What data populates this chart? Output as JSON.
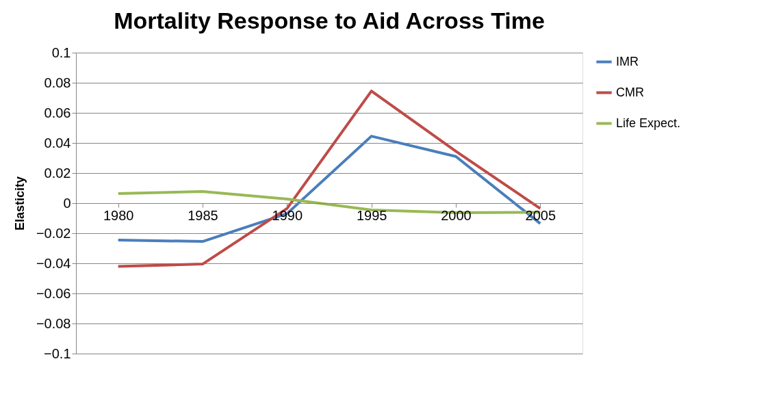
{
  "chart_data": {
    "type": "line",
    "title": "Mortality Response to Aid Across Time",
    "ylabel": "Elasticity",
    "categories": [
      "1980",
      "1985",
      "1990",
      "1995",
      "2000",
      "2005"
    ],
    "series": [
      {
        "name": "IMR",
        "color": "#4a7ebb",
        "values": [
          -0.0245,
          -0.0255,
          -0.007,
          0.0445,
          0.031,
          -0.0136
        ]
      },
      {
        "name": "CMR",
        "color": "#be4b48",
        "values": [
          -0.042,
          -0.0405,
          -0.0036,
          0.0745,
          0.0345,
          -0.0036
        ]
      },
      {
        "name": "Life Expect.",
        "color": "#98b954",
        "values": [
          0.0064,
          0.0077,
          0.0027,
          -0.0045,
          -0.0064,
          -0.006
        ]
      }
    ],
    "ylim": [
      -0.1,
      0.1
    ],
    "yticks": [
      -0.1,
      -0.08,
      -0.06,
      -0.04,
      -0.02,
      0,
      0.02,
      0.04,
      0.06,
      0.08,
      0.1
    ],
    "grid": "y",
    "legend": "right",
    "marker": "none",
    "line_style": "solid"
  }
}
